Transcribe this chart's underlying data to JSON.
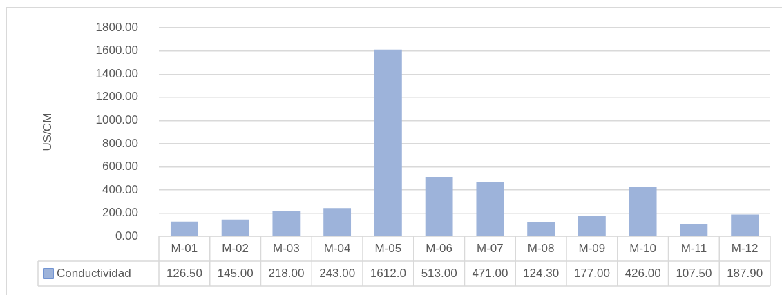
{
  "chart_data": {
    "type": "bar",
    "ylabel": "US/CM",
    "categories": [
      "M-01",
      "M-02",
      "M-03",
      "M-04",
      "M-05",
      "M-06",
      "M-07",
      "M-08",
      "M-09",
      "M-10",
      "M-11",
      "M-12"
    ],
    "series": [
      {
        "name": "Conductividad",
        "color": "#9db3da",
        "values": [
          126.5,
          145,
          218,
          243,
          1612,
          513,
          471,
          124.3,
          177,
          426,
          107.5,
          187.9
        ],
        "value_labels": [
          "126.50",
          "145.00",
          "218.00",
          "243.00",
          "1612.0",
          "513.00",
          "471.00",
          "124.30",
          "177.00",
          "426.00",
          "107.50",
          "187.90"
        ]
      }
    ],
    "ylim": [
      0,
      1800
    ],
    "yticks": [
      {
        "value": 0,
        "label": "0.00"
      },
      {
        "value": 200,
        "label": "200.00"
      },
      {
        "value": 400,
        "label": "400.00"
      },
      {
        "value": 600,
        "label": "600.00"
      },
      {
        "value": 800,
        "label": "800.00"
      },
      {
        "value": 1000,
        "label": "1000.00"
      },
      {
        "value": 1200,
        "label": "1200.00"
      },
      {
        "value": 1400,
        "label": "1400.00"
      },
      {
        "value": 1600,
        "label": "1600.00"
      },
      {
        "value": 1800,
        "label": "1800.00"
      }
    ],
    "grid": "y",
    "legend": "bottom"
  }
}
